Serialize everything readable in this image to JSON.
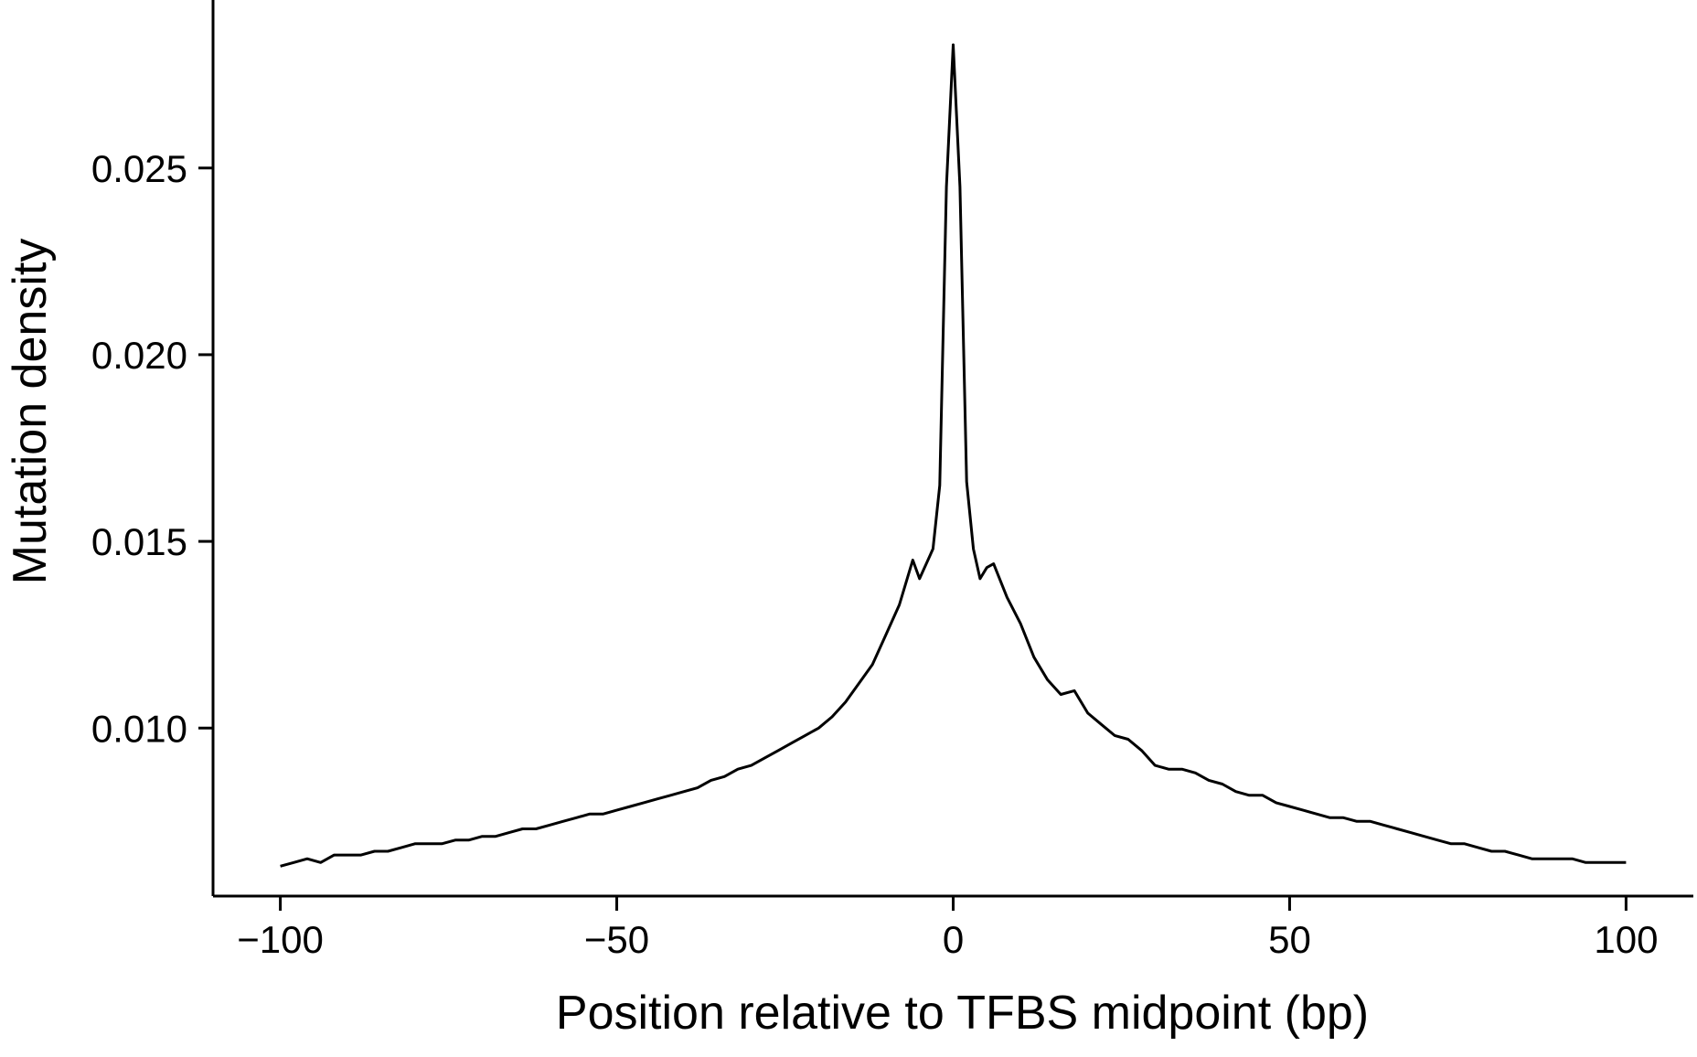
{
  "chart_data": {
    "type": "line",
    "title": "",
    "xlabel": "Position relative to TFBS midpoint (bp)",
    "ylabel": "Mutation density",
    "xlim": [
      -110,
      110
    ],
    "ylim": [
      0.0055,
      0.0295
    ],
    "x_ticks": [
      -100,
      -50,
      0,
      50,
      100
    ],
    "x_tick_labels": [
      "−100",
      "−50",
      "0",
      "50",
      "100"
    ],
    "y_ticks": [
      0.01,
      0.015,
      0.02,
      0.025
    ],
    "y_tick_labels": [
      "0.010",
      "0.015",
      "0.020",
      "0.025"
    ],
    "grid": false,
    "legend": "none",
    "series": [
      {
        "color": "#000000",
        "points": [
          [
            -100,
            0.0063
          ],
          [
            -98,
            0.0064
          ],
          [
            -96,
            0.0065
          ],
          [
            -94,
            0.0064
          ],
          [
            -92,
            0.0066
          ],
          [
            -90,
            0.0066
          ],
          [
            -88,
            0.0066
          ],
          [
            -86,
            0.0067
          ],
          [
            -84,
            0.0067
          ],
          [
            -82,
            0.0068
          ],
          [
            -80,
            0.0069
          ],
          [
            -78,
            0.0069
          ],
          [
            -76,
            0.0069
          ],
          [
            -74,
            0.007
          ],
          [
            -72,
            0.007
          ],
          [
            -70,
            0.0071
          ],
          [
            -68,
            0.0071
          ],
          [
            -66,
            0.0072
          ],
          [
            -64,
            0.0073
          ],
          [
            -62,
            0.0073
          ],
          [
            -60,
            0.0074
          ],
          [
            -58,
            0.0075
          ],
          [
            -56,
            0.0076
          ],
          [
            -54,
            0.0077
          ],
          [
            -52,
            0.0077
          ],
          [
            -50,
            0.0078
          ],
          [
            -48,
            0.0079
          ],
          [
            -46,
            0.008
          ],
          [
            -44,
            0.0081
          ],
          [
            -42,
            0.0082
          ],
          [
            -40,
            0.0083
          ],
          [
            -38,
            0.0084
          ],
          [
            -36,
            0.0086
          ],
          [
            -34,
            0.0087
          ],
          [
            -32,
            0.0089
          ],
          [
            -30,
            0.009
          ],
          [
            -28,
            0.0092
          ],
          [
            -26,
            0.0094
          ],
          [
            -24,
            0.0096
          ],
          [
            -22,
            0.0098
          ],
          [
            -20,
            0.01
          ],
          [
            -18,
            0.0103
          ],
          [
            -16,
            0.0107
          ],
          [
            -14,
            0.0112
          ],
          [
            -12,
            0.0117
          ],
          [
            -10,
            0.0125
          ],
          [
            -8,
            0.0133
          ],
          [
            -6,
            0.0145
          ],
          [
            -5,
            0.014
          ],
          [
            -3,
            0.0148
          ],
          [
            -2,
            0.0165
          ],
          [
            -1,
            0.0245
          ],
          [
            0,
            0.0283
          ],
          [
            1,
            0.0245
          ],
          [
            2,
            0.0166
          ],
          [
            3,
            0.0148
          ],
          [
            4,
            0.014
          ],
          [
            5,
            0.0143
          ],
          [
            6,
            0.0144
          ],
          [
            8,
            0.0135
          ],
          [
            10,
            0.0128
          ],
          [
            12,
            0.0119
          ],
          [
            14,
            0.0113
          ],
          [
            16,
            0.0109
          ],
          [
            18,
            0.011
          ],
          [
            20,
            0.0104
          ],
          [
            22,
            0.0101
          ],
          [
            24,
            0.0098
          ],
          [
            26,
            0.0097
          ],
          [
            28,
            0.0094
          ],
          [
            30,
            0.009
          ],
          [
            32,
            0.0089
          ],
          [
            34,
            0.0089
          ],
          [
            36,
            0.0088
          ],
          [
            38,
            0.0086
          ],
          [
            40,
            0.0085
          ],
          [
            42,
            0.0083
          ],
          [
            44,
            0.0082
          ],
          [
            46,
            0.0082
          ],
          [
            48,
            0.008
          ],
          [
            50,
            0.0079
          ],
          [
            52,
            0.0078
          ],
          [
            54,
            0.0077
          ],
          [
            56,
            0.0076
          ],
          [
            58,
            0.0076
          ],
          [
            60,
            0.0075
          ],
          [
            62,
            0.0075
          ],
          [
            64,
            0.0074
          ],
          [
            66,
            0.0073
          ],
          [
            68,
            0.0072
          ],
          [
            70,
            0.0071
          ],
          [
            72,
            0.007
          ],
          [
            74,
            0.0069
          ],
          [
            76,
            0.0069
          ],
          [
            78,
            0.0068
          ],
          [
            80,
            0.0067
          ],
          [
            82,
            0.0067
          ],
          [
            84,
            0.0066
          ],
          [
            86,
            0.0065
          ],
          [
            88,
            0.0065
          ],
          [
            90,
            0.0065
          ],
          [
            92,
            0.0065
          ],
          [
            94,
            0.0064
          ],
          [
            96,
            0.0064
          ],
          [
            98,
            0.0064
          ],
          [
            100,
            0.0064
          ]
        ]
      }
    ]
  }
}
